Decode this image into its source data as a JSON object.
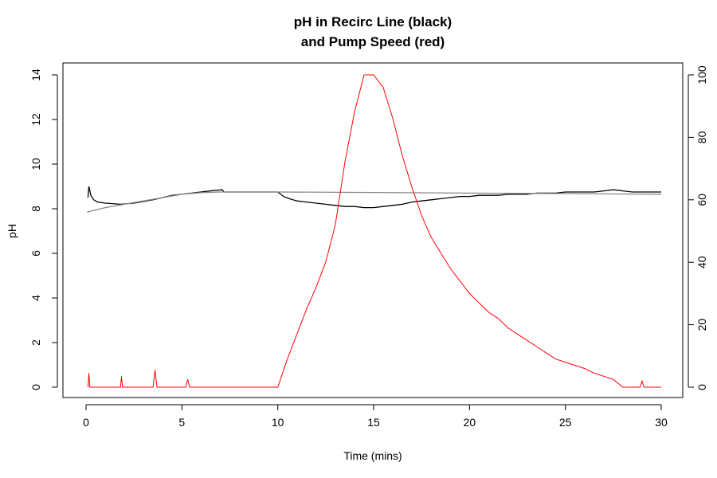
{
  "chart_data": {
    "type": "line",
    "title_line1": "pH in Recirc Line (black)",
    "title_line2": "and Pump Speed (red)",
    "xlabel": "Time (mins)",
    "ylabel": "pH",
    "xlim": [
      0,
      30
    ],
    "ylim_left": [
      0,
      14
    ],
    "ylim_right": [
      0,
      100
    ],
    "x_ticks": [
      0,
      5,
      10,
      15,
      20,
      25,
      30
    ],
    "y_ticks_left": [
      0,
      2,
      4,
      6,
      8,
      10,
      12,
      14
    ],
    "y_ticks_right": [
      0,
      20,
      40,
      60,
      80,
      100
    ],
    "grid": false,
    "series": [
      {
        "axis": "left",
        "color": "#000000",
        "x": [
          0.1,
          0.15,
          0.25,
          0.4,
          0.6,
          1.0,
          1.8,
          2.5,
          3.5,
          4.5,
          5.5,
          6.5,
          7.1,
          7.2,
          8,
          9,
          10.0,
          10.3,
          10.6,
          11.0,
          11.5,
          12.0,
          12.5,
          13.0,
          13.5,
          14.0,
          14.5,
          15.0,
          15.5,
          16.0,
          16.5,
          17.0,
          17.5,
          18.0,
          18.5,
          19.0,
          19.5,
          20.0,
          20.5,
          21.0,
          21.5,
          22.0,
          22.5,
          23.0,
          23.5,
          24.0,
          24.5,
          25.0,
          25.5,
          26.0,
          26.5,
          27.0,
          27.5,
          28.0,
          28.5,
          29.0,
          29.5,
          30.0
        ],
        "y": [
          8.5,
          9.0,
          8.6,
          8.4,
          8.3,
          8.25,
          8.2,
          8.25,
          8.4,
          8.6,
          8.7,
          8.8,
          8.85,
          8.75,
          8.75,
          8.75,
          8.75,
          8.55,
          8.45,
          8.35,
          8.3,
          8.25,
          8.2,
          8.15,
          8.1,
          8.1,
          8.05,
          8.05,
          8.1,
          8.15,
          8.2,
          8.3,
          8.35,
          8.4,
          8.45,
          8.5,
          8.55,
          8.55,
          8.6,
          8.6,
          8.6,
          8.65,
          8.65,
          8.65,
          8.7,
          8.7,
          8.7,
          8.75,
          8.75,
          8.75,
          8.75,
          8.8,
          8.85,
          8.8,
          8.75,
          8.75,
          8.75,
          8.75
        ]
      },
      {
        "axis": "left",
        "color": "#888888",
        "x": [
          0.05,
          1,
          2,
          3,
          4,
          5,
          6,
          7,
          8,
          9,
          10,
          15,
          20,
          25,
          30
        ],
        "y": [
          7.85,
          8.05,
          8.2,
          8.35,
          8.5,
          8.65,
          8.72,
          8.75,
          8.75,
          8.75,
          8.75,
          8.73,
          8.7,
          8.68,
          8.65
        ]
      },
      {
        "axis": "right",
        "color": "#ff0000",
        "x": [
          0.1,
          0.15,
          0.2,
          1.8,
          1.85,
          1.9,
          3.5,
          3.6,
          3.7,
          5.2,
          5.3,
          5.4,
          10.0,
          10.5,
          11.0,
          11.5,
          12.0,
          12.5,
          13.0,
          13.5,
          14.0,
          14.5,
          15.0,
          15.5,
          16.0,
          16.5,
          17.0,
          17.5,
          18.0,
          18.5,
          19.0,
          19.5,
          20.0,
          20.5,
          21.0,
          21.5,
          22.0,
          22.5,
          23.0,
          23.5,
          24.0,
          24.5,
          25.0,
          25.5,
          26.0,
          26.5,
          27.0,
          27.5,
          28.0,
          28.9,
          29.0,
          29.1,
          30.0
        ],
        "y": [
          0,
          4.5,
          0,
          0,
          3.5,
          0,
          0,
          5.5,
          0,
          0,
          2.5,
          0,
          0,
          9,
          17,
          25,
          32,
          40,
          52,
          72,
          88,
          100,
          100,
          96,
          86,
          74,
          64,
          55,
          48,
          43,
          38,
          34,
          30,
          27,
          24,
          22,
          19,
          17,
          15,
          13,
          11,
          9,
          8,
          7,
          6,
          4.5,
          3.5,
          2.5,
          0,
          0,
          2,
          0,
          0
        ]
      }
    ]
  }
}
